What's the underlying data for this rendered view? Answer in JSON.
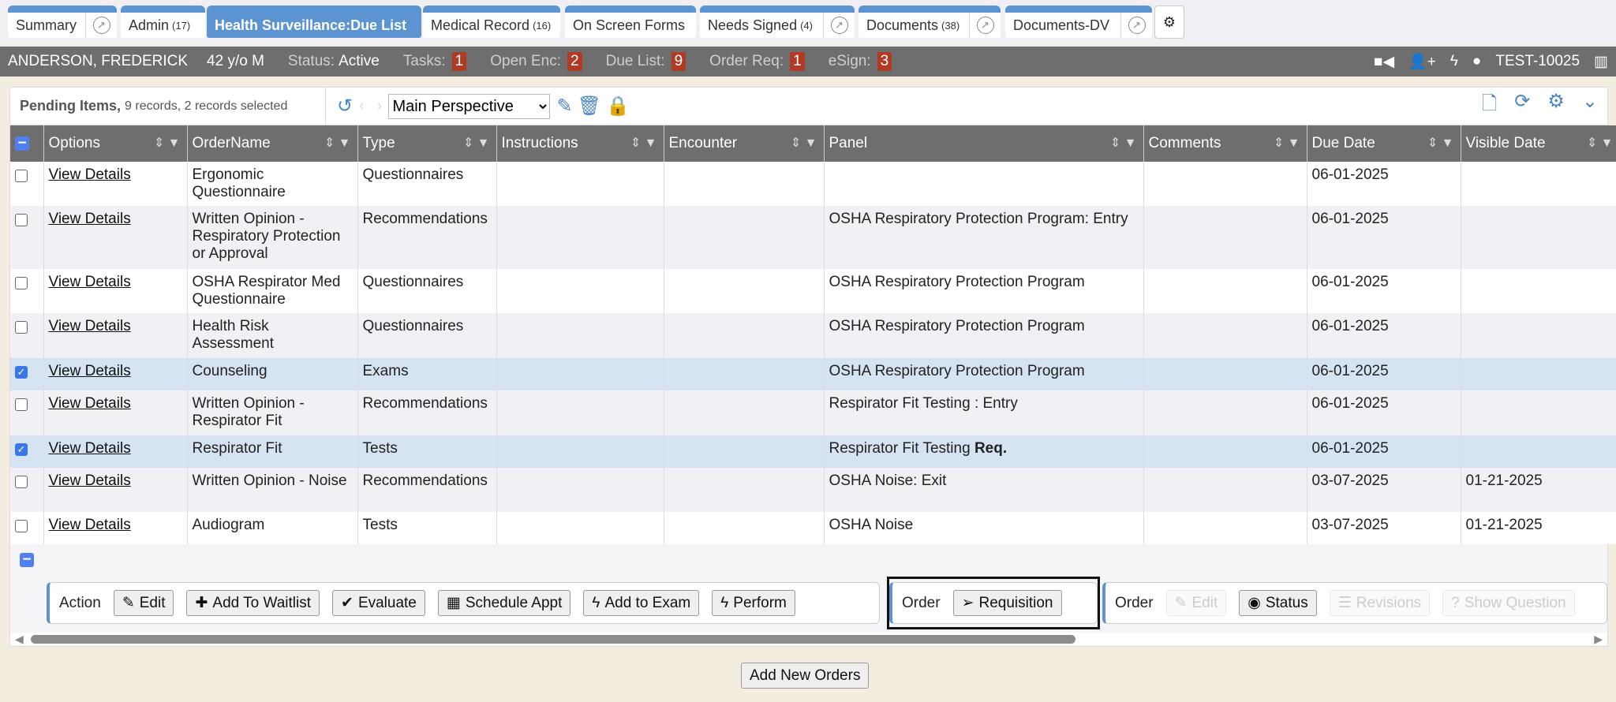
{
  "tabs": [
    {
      "label": "Summary",
      "count": "",
      "ext": true
    },
    {
      "label": "Admin",
      "count": "(17)",
      "ext": false
    },
    {
      "label": "Health Surveillance:Due List",
      "count": "",
      "ext": false,
      "active": true
    },
    {
      "label": "Medical Record",
      "count": "(16)",
      "ext": false
    },
    {
      "label": "On Screen Forms",
      "count": "",
      "ext": false
    },
    {
      "label": "Needs Signed",
      "count": "(4)",
      "ext": true
    },
    {
      "label": "Documents",
      "count": "(38)",
      "ext": true
    },
    {
      "label": "Documents-DV",
      "count": "",
      "ext": true
    }
  ],
  "patient": {
    "name": "ANDERSON, FREDERICK",
    "age_sex": "42 y/o M",
    "status_label": "Status:",
    "status": "Active",
    "counters": [
      {
        "label": "Tasks:",
        "value": "1"
      },
      {
        "label": "Open Enc:",
        "value": "2"
      },
      {
        "label": "Due List:",
        "value": "9"
      },
      {
        "label": "Order Req:",
        "value": "1"
      },
      {
        "label": "eSign:",
        "value": "3"
      }
    ],
    "user": "TEST-10025"
  },
  "grid": {
    "title": "Pending Items,",
    "summary": "9 records, 2 records selected",
    "perspective": "Main Perspective",
    "columns": [
      "Options",
      "OrderName",
      "Type",
      "Instructions",
      "Encounter",
      "Panel",
      "Comments",
      "Due Date",
      "Visible Date"
    ],
    "rows": [
      {
        "checked": false,
        "option": "View Details",
        "name": "Ergonomic Questionnaire",
        "type": "Questionnaires",
        "panel": "",
        "panel_bold": "",
        "due": "06-01-2025",
        "visible": ""
      },
      {
        "checked": false,
        "option": "View Details",
        "name": "Written Opinion - Respiratory Protection or Approval",
        "type": "Recommendations",
        "panel": "OSHA Respiratory Protection Program: Entry",
        "panel_bold": "",
        "due": "06-01-2025",
        "visible": ""
      },
      {
        "checked": false,
        "option": "View Details",
        "name": "OSHA Respirator Med Questionnaire",
        "type": "Questionnaires",
        "panel": "OSHA Respiratory Protection Program",
        "panel_bold": "",
        "due": "06-01-2025",
        "visible": ""
      },
      {
        "checked": false,
        "option": "View Details",
        "name": "Health Risk Assessment",
        "type": "Questionnaires",
        "panel": "OSHA Respiratory Protection Program",
        "panel_bold": "",
        "due": "06-01-2025",
        "visible": ""
      },
      {
        "checked": true,
        "option": "View Details",
        "name": "Counseling",
        "type": "Exams",
        "panel": "OSHA Respiratory Protection Program",
        "panel_bold": "",
        "due": "06-01-2025",
        "visible": ""
      },
      {
        "checked": false,
        "option": "View Details",
        "name": "Written Opinion - Respirator Fit",
        "type": "Recommendations",
        "panel": "Respirator Fit Testing : Entry",
        "panel_bold": "",
        "due": "06-01-2025",
        "visible": ""
      },
      {
        "checked": true,
        "option": "View Details",
        "name": "Respirator Fit",
        "type": "Tests",
        "panel": "Respirator Fit Testing",
        "panel_bold": "Req.",
        "due": "06-01-2025",
        "visible": ""
      },
      {
        "checked": false,
        "option": "View Details",
        "name": "Written Opinion - Noise",
        "type": "Recommendations",
        "panel": "OSHA Noise: Exit",
        "panel_bold": "",
        "due": "03-07-2025",
        "visible": "01-21-2025"
      },
      {
        "checked": false,
        "option": "View Details",
        "name": "Audiogram",
        "type": "Tests",
        "panel": "OSHA Noise",
        "panel_bold": "",
        "due": "03-07-2025",
        "visible": "01-21-2025"
      }
    ]
  },
  "actions": {
    "label": "Action",
    "buttons": [
      "Edit",
      "Add To Waitlist",
      "Evaluate",
      "Schedule Appt",
      "Add to Exam",
      "Perform"
    ]
  },
  "order1": {
    "label": "Order",
    "buttons": [
      "Requisition"
    ]
  },
  "order2": {
    "label": "Order",
    "buttons": [
      "Edit",
      "Status",
      "Revisions",
      "Show Question"
    ]
  },
  "add_new_orders": "Add New Orders"
}
